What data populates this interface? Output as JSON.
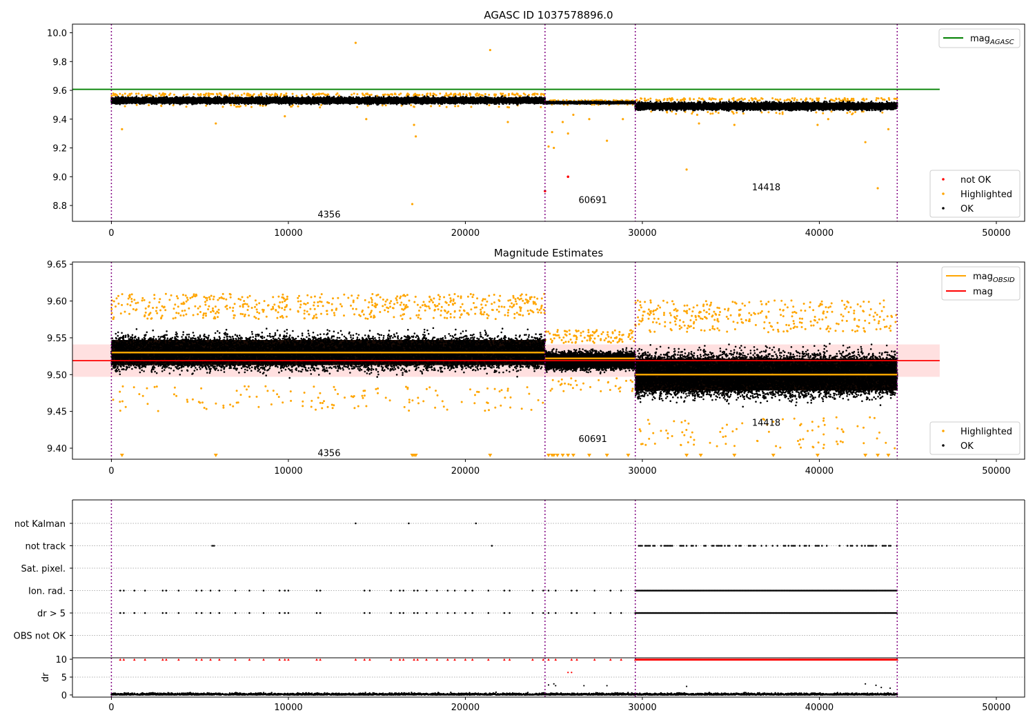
{
  "chart_data": [
    {
      "type": "scatter",
      "title": "AGASC ID 1037578896.0",
      "xlim": [
        -2200,
        51600
      ],
      "ylim": [
        8.69,
        10.06
      ],
      "xticks": [
        "0",
        "10000",
        "20000",
        "30000",
        "40000",
        "50000"
      ],
      "yticks": [
        "8.8",
        "9.0",
        "9.2",
        "9.4",
        "9.6",
        "9.8",
        "10.0"
      ],
      "obs_boundaries": [
        0,
        24500,
        29600,
        44400
      ],
      "obsid_labels": [
        {
          "text": "4356",
          "x": 12300,
          "y": 8.74
        },
        {
          "text": "60691",
          "x": 27200,
          "y": 8.84
        },
        {
          "text": "14418",
          "x": 37000,
          "y": 8.93
        }
      ],
      "lines": [
        {
          "name": "mag_AGASC",
          "color": "#008000",
          "y": 9.607,
          "x_range": [
            -2200,
            46800
          ]
        }
      ],
      "ok_band_segments": [
        {
          "x_range": [
            0,
            24500
          ],
          "center": 9.53,
          "half_width": 0.035
        },
        {
          "x_range": [
            24500,
            29600
          ],
          "center": 9.515,
          "half_width": 0.012
        },
        {
          "x_range": [
            29600,
            44400
          ],
          "center": 9.49,
          "half_width": 0.04
        }
      ],
      "highlighted_points": [
        [
          600,
          9.33
        ],
        [
          5900,
          9.37
        ],
        [
          9800,
          9.42
        ],
        [
          13800,
          9.93
        ],
        [
          14400,
          9.4
        ],
        [
          17000,
          8.81
        ],
        [
          17100,
          9.36
        ],
        [
          17200,
          9.28
        ],
        [
          21400,
          9.88
        ],
        [
          22400,
          9.38
        ],
        [
          24700,
          9.21
        ],
        [
          25000,
          9.2
        ],
        [
          24900,
          9.31
        ],
        [
          25500,
          9.38
        ],
        [
          25800,
          9.3
        ],
        [
          26100,
          9.43
        ],
        [
          27000,
          9.4
        ],
        [
          28000,
          9.25
        ],
        [
          28900,
          9.4
        ],
        [
          32500,
          9.05
        ],
        [
          33100,
          9.43
        ],
        [
          33200,
          9.37
        ],
        [
          35200,
          9.36
        ],
        [
          39900,
          9.36
        ],
        [
          40500,
          9.4
        ],
        [
          42600,
          9.24
        ],
        [
          43300,
          8.92
        ],
        [
          43900,
          9.33
        ]
      ],
      "not_ok_points": [
        [
          24500,
          8.9
        ],
        [
          25800,
          9.0
        ]
      ],
      "legend": [
        {
          "label": "mag",
          "subscript": "AGASC",
          "color": "#008000",
          "marker": "line"
        },
        {
          "label": "not OK",
          "color": "#ff0000",
          "marker": "dot"
        },
        {
          "label": "Highlighted",
          "color": "#ffa500",
          "marker": "dot"
        },
        {
          "label": "OK",
          "color": "#000000",
          "marker": "dot"
        }
      ],
      "legend_placement": [
        "upper right",
        "lower right"
      ]
    },
    {
      "type": "scatter",
      "title": "Magnitude Estimates",
      "xlim": [
        -2200,
        51600
      ],
      "ylim": [
        9.385,
        9.653
      ],
      "xticks": [
        "0",
        "10000",
        "20000",
        "30000",
        "40000",
        "50000"
      ],
      "yticks": [
        "9.40",
        "9.45",
        "9.50",
        "9.55",
        "9.60",
        "9.65"
      ],
      "obs_boundaries": [
        0,
        24500,
        29600,
        44400
      ],
      "obsid_labels": [
        {
          "text": "4356",
          "x": 12300,
          "y": 9.394
        },
        {
          "text": "60691",
          "x": 27200,
          "y": 9.413
        },
        {
          "text": "14418",
          "x": 37000,
          "y": 9.435
        }
      ],
      "mag_line": {
        "name": "mag",
        "color": "#ff0000",
        "y": 9.519,
        "band": [
          9.497,
          9.541
        ],
        "x_range": [
          -2200,
          46800
        ]
      },
      "mag_obsid_segments": [
        {
          "x_range": [
            0,
            24500
          ],
          "y": 9.53
        },
        {
          "x_range": [
            24500,
            29600
          ],
          "y": 9.522
        },
        {
          "x_range": [
            29600,
            44400
          ],
          "y": 9.5
        }
      ],
      "ok_band_segments": [
        {
          "x_range": [
            0,
            24500
          ],
          "center": 9.53,
          "half_width": 0.038
        },
        {
          "x_range": [
            24500,
            29600
          ],
          "center": 9.519,
          "half_width": 0.02
        },
        {
          "x_range": [
            29600,
            44400
          ],
          "center": 9.5,
          "half_width": 0.048
        }
      ],
      "clipped_markers_x": [
        600,
        5900,
        17000,
        17100,
        17200,
        21400,
        24700,
        24900,
        25000,
        25200,
        25500,
        25800,
        26100,
        27000,
        28000,
        29200,
        32500,
        33300,
        35200,
        37400,
        39900,
        42600,
        43300,
        43900
      ],
      "legend": [
        {
          "label": "mag",
          "subscript": "OBSID",
          "color": "#ffa500",
          "marker": "line"
        },
        {
          "label": "mag",
          "color": "#ff0000",
          "marker": "line"
        },
        {
          "label": "Highlighted",
          "color": "#ffa500",
          "marker": "dot"
        },
        {
          "label": "OK",
          "color": "#000000",
          "marker": "dot"
        }
      ],
      "legend_placement": [
        "upper right",
        "lower right"
      ]
    },
    {
      "type": "scatter",
      "xlim": [
        -2200,
        51600
      ],
      "flag_rows": [
        "not Kalman",
        "not track",
        "Sat. pixel.",
        "Ion. rad.",
        "dr > 5",
        "OBS not OK"
      ],
      "flag_points": {
        "not Kalman": [
          13800,
          16800,
          20600
        ],
        "not track": [
          5700,
          5800,
          21500
        ],
        "Sat. pixel.": [],
        "Ion. rad.": [
          500,
          700,
          1300,
          1900,
          2900,
          3100,
          3800,
          4800,
          5100,
          5600,
          6100,
          7000,
          7800,
          8600,
          9500,
          9800,
          10000,
          11600,
          11800,
          14300,
          14600,
          15800,
          16300,
          16500,
          17100,
          17300,
          17800,
          18400,
          19000,
          19400,
          20000,
          20400,
          21300,
          22200,
          22500,
          23800,
          24400,
          24700,
          25100,
          26000,
          26300,
          27300,
          28200,
          28800
        ],
        "dr > 5": [
          500,
          700,
          1300,
          1900,
          2900,
          3100,
          3800,
          4800,
          5100,
          5600,
          6100,
          7000,
          7800,
          8600,
          9500,
          9800,
          10000,
          11600,
          11800,
          14300,
          14600,
          15800,
          16300,
          16500,
          17100,
          17300,
          17800,
          18400,
          19000,
          19400,
          20000,
          20400,
          21300,
          22200,
          22500,
          23800,
          24400,
          24700,
          25100,
          26000,
          26300,
          27300,
          28200,
          28800
        ],
        "OBS not OK": []
      },
      "dense_flag_range": [
        29600,
        44400
      ],
      "not_track_range": [
        29800,
        44400
      ],
      "obs_boundaries": [
        0,
        24500,
        29600,
        44400
      ],
      "xticks": [
        "0",
        "10000",
        "20000",
        "30000",
        "40000",
        "50000"
      ]
    },
    {
      "type": "scatter",
      "ylabel": "dr",
      "xlim": [
        -2200,
        51600
      ],
      "ylim": [
        -0.6,
        10.4
      ],
      "yticks": [
        "0",
        "5",
        "10"
      ],
      "xticks": [
        "0",
        "10000",
        "20000",
        "30000",
        "40000",
        "50000"
      ],
      "obs_boundaries": [
        0,
        24500,
        29600,
        44400
      ],
      "clipped_at_10_x": [
        500,
        700,
        1300,
        1900,
        2900,
        3100,
        3800,
        4800,
        5100,
        5600,
        6100,
        7000,
        7800,
        8600,
        9500,
        9800,
        10000,
        11600,
        11800,
        13800,
        14300,
        14600,
        15800,
        16300,
        16500,
        17100,
        17300,
        17800,
        18400,
        19000,
        19400,
        20000,
        20400,
        21300,
        22200,
        22500,
        23800,
        24400,
        24700,
        25100,
        26000,
        26300,
        27300,
        28200,
        28800
      ],
      "outliers": [
        [
          24700,
          2.8
        ],
        [
          25000,
          3.1
        ],
        [
          25100,
          2.6
        ],
        [
          25800,
          6.3
        ],
        [
          26000,
          6.3
        ],
        [
          26700,
          2.6
        ],
        [
          28000,
          2.6
        ],
        [
          32500,
          2.4
        ],
        [
          42600,
          3.1
        ],
        [
          43200,
          2.7
        ],
        [
          43500,
          2.1
        ],
        [
          44000,
          1.9
        ]
      ]
    }
  ]
}
